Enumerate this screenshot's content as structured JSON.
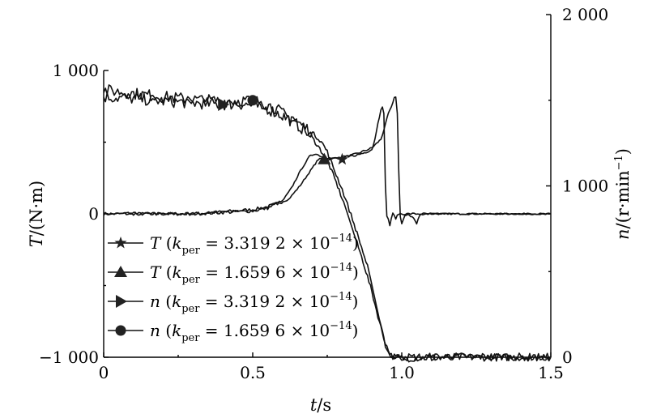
{
  "chart_data": {
    "type": "line",
    "title": "",
    "x_axis": {
      "label_var": "t",
      "label_unit": "/s",
      "range": [
        0,
        1.5
      ],
      "ticks": [
        0,
        0.5,
        1.0,
        1.5
      ],
      "tick_labels": [
        "0",
        "0.5",
        "1.0",
        "1.5"
      ]
    },
    "y_left": {
      "label_var": "T",
      "label_unit": "/(N·m)",
      "range": [
        -1000,
        1000
      ],
      "ticks": [
        -1000,
        0,
        1000
      ],
      "tick_labels": [
        "−1 000",
        "0",
        "1 000"
      ]
    },
    "y_right": {
      "label_var": "n",
      "label_unit": "/(r·min",
      "label_sup": "−1",
      "label_close": ")",
      "range": [
        0,
        2000
      ],
      "ticks": [
        0,
        1000,
        2000
      ],
      "tick_labels": [
        "0",
        "1 000",
        "2 000"
      ]
    },
    "grid": false,
    "legend_position": "lower-left",
    "series": [
      {
        "id": "T1",
        "axis": "left",
        "marker": "star",
        "legend_var": "T",
        "legend_open": "(",
        "legend_k": "k",
        "legend_sub": "per",
        "legend_eq": " = 3.319 2 × 10",
        "legend_exp": "−14",
        "legend_close": ")",
        "points": [
          [
            0,
            0
          ],
          [
            0.2,
            0
          ],
          [
            0.3,
            0
          ],
          [
            0.5,
            30
          ],
          [
            0.55,
            50
          ],
          [
            0.62,
            100
          ],
          [
            0.66,
            200
          ],
          [
            0.7,
            320
          ],
          [
            0.72,
            380
          ],
          [
            0.74,
            390
          ],
          [
            0.76,
            385
          ],
          [
            0.8,
            390
          ],
          [
            0.85,
            420
          ],
          [
            0.9,
            460
          ],
          [
            0.93,
            520
          ],
          [
            0.945,
            620
          ],
          [
            0.955,
            700
          ],
          [
            0.965,
            740
          ],
          [
            0.97,
            780
          ],
          [
            0.975,
            810
          ],
          [
            0.98,
            820
          ],
          [
            0.985,
            700
          ],
          [
            0.99,
            300
          ],
          [
            0.995,
            -20
          ],
          [
            1.0,
            -70
          ],
          [
            1.01,
            -20
          ],
          [
            1.02,
            0
          ],
          [
            1.04,
            -30
          ],
          [
            1.05,
            -70
          ],
          [
            1.06,
            -10
          ],
          [
            1.07,
            0
          ],
          [
            1.5,
            0
          ]
        ],
        "marker_points": [
          [
            0.8,
            380
          ]
        ]
      },
      {
        "id": "T2",
        "axis": "left",
        "marker": "triangle",
        "legend_var": "T",
        "legend_open": "(",
        "legend_k": "k",
        "legend_sub": "per",
        "legend_eq": " = 1.659 6 × 10",
        "legend_exp": "−14",
        "legend_close": ")",
        "points": [
          [
            0,
            0
          ],
          [
            0.2,
            0
          ],
          [
            0.3,
            0
          ],
          [
            0.5,
            20
          ],
          [
            0.55,
            40
          ],
          [
            0.6,
            90
          ],
          [
            0.63,
            180
          ],
          [
            0.66,
            300
          ],
          [
            0.69,
            400
          ],
          [
            0.71,
            420
          ],
          [
            0.73,
            400
          ],
          [
            0.75,
            380
          ],
          [
            0.8,
            395
          ],
          [
            0.85,
            410
          ],
          [
            0.88,
            430
          ],
          [
            0.9,
            450
          ],
          [
            0.91,
            520
          ],
          [
            0.92,
            640
          ],
          [
            0.93,
            720
          ],
          [
            0.935,
            740
          ],
          [
            0.94,
            700
          ],
          [
            0.945,
            200
          ],
          [
            0.95,
            -10
          ],
          [
            0.955,
            -40
          ],
          [
            0.96,
            -80
          ],
          [
            0.965,
            -30
          ],
          [
            0.97,
            0
          ],
          [
            0.98,
            -30
          ],
          [
            0.99,
            0
          ],
          [
            1.0,
            0
          ],
          [
            1.5,
            0
          ]
        ],
        "marker_points": [
          [
            0.74,
            380
          ]
        ]
      },
      {
        "id": "n1",
        "axis": "right",
        "marker": "triangle-right",
        "legend_var": "n",
        "legend_open": "(",
        "legend_k": "k",
        "legend_sub": "per",
        "legend_eq": " = 3.319 2 × 10",
        "legend_exp": "−14",
        "legend_close": ")",
        "points": [
          [
            0,
            1520
          ],
          [
            0.1,
            1510
          ],
          [
            0.2,
            1495
          ],
          [
            0.3,
            1485
          ],
          [
            0.4,
            1475
          ],
          [
            0.45,
            1480
          ],
          [
            0.5,
            1470
          ],
          [
            0.55,
            1450
          ],
          [
            0.6,
            1410
          ],
          [
            0.63,
            1380
          ],
          [
            0.67,
            1330
          ],
          [
            0.7,
            1280
          ],
          [
            0.72,
            1230
          ],
          [
            0.75,
            1150
          ],
          [
            0.78,
            1020
          ],
          [
            0.81,
            880
          ],
          [
            0.84,
            720
          ],
          [
            0.87,
            560
          ],
          [
            0.9,
            380
          ],
          [
            0.92,
            240
          ],
          [
            0.94,
            110
          ],
          [
            0.955,
            40
          ],
          [
            0.97,
            0
          ],
          [
            1.0,
            -5
          ],
          [
            1.2,
            0
          ],
          [
            1.5,
            0
          ]
        ],
        "marker_points": [
          [
            0.4,
            1475
          ]
        ]
      },
      {
        "id": "n2",
        "axis": "right",
        "marker": "circle",
        "legend_var": "n",
        "legend_open": "(",
        "legend_k": "k",
        "legend_sub": "per",
        "legend_eq": " = 1.659 6 × 10",
        "legend_exp": "−14",
        "legend_close": ")",
        "points": [
          [
            0,
            1560
          ],
          [
            0.1,
            1540
          ],
          [
            0.2,
            1520
          ],
          [
            0.3,
            1505
          ],
          [
            0.4,
            1495
          ],
          [
            0.48,
            1500
          ],
          [
            0.52,
            1490
          ],
          [
            0.57,
            1460
          ],
          [
            0.62,
            1400
          ],
          [
            0.67,
            1350
          ],
          [
            0.7,
            1310
          ],
          [
            0.73,
            1260
          ],
          [
            0.75,
            1200
          ],
          [
            0.77,
            1110
          ],
          [
            0.8,
            980
          ],
          [
            0.83,
            830
          ],
          [
            0.86,
            670
          ],
          [
            0.89,
            500
          ],
          [
            0.91,
            340
          ],
          [
            0.93,
            180
          ],
          [
            0.945,
            70
          ],
          [
            0.96,
            10
          ],
          [
            0.98,
            0
          ],
          [
            1.0,
            0
          ],
          [
            1.2,
            5
          ],
          [
            1.5,
            0
          ]
        ],
        "marker_points": [
          [
            0.5,
            1500
          ]
        ]
      }
    ]
  }
}
